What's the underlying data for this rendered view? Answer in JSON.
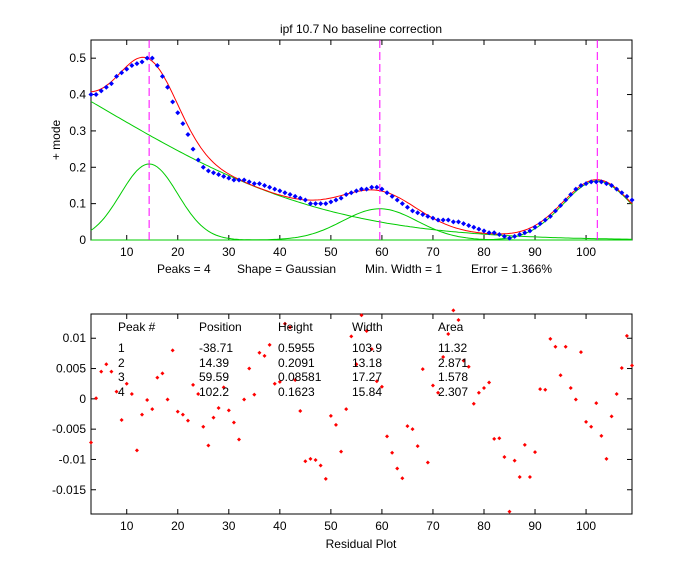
{
  "chart_data": [
    {
      "id": "fit",
      "type": "line",
      "title": "ipf 10.7    No baseline correction",
      "ylabel": "+ mode",
      "xlim": [
        3,
        109
      ],
      "ylim": [
        0,
        0.55
      ],
      "xticks": [
        10,
        20,
        30,
        40,
        50,
        60,
        70,
        80,
        90,
        100
      ],
      "yticks": [
        0,
        0.1,
        0.2,
        0.3,
        0.4,
        0.5
      ],
      "ytick_labels": [
        "0",
        "0.1",
        "0.2",
        "0.3",
        "0.4",
        "0.5"
      ],
      "status_line": {
        "peaks": "Peaks = 4",
        "shape": "Shape = Gaussian",
        "min_width": "Min. Width = 1",
        "error": "Error = 1.366%"
      },
      "peak_markers_x": [
        14.39,
        59.59,
        102.2
      ],
      "components": [
        {
          "name": "Peak 1",
          "position": -38.71,
          "height": 0.5955,
          "width": 103.9,
          "color": "#00cc00"
        },
        {
          "name": "Peak 2",
          "position": 14.39,
          "height": 0.2091,
          "width": 13.18,
          "color": "#00cc00"
        },
        {
          "name": "Peak 3",
          "position": 59.59,
          "height": 0.08581,
          "width": 17.27,
          "color": "#00cc00"
        },
        {
          "name": "Peak 4",
          "position": 102.2,
          "height": 0.1623,
          "width": 15.84,
          "color": "#00cc00"
        }
      ],
      "series": [
        {
          "name": "data",
          "color": "#0000ff",
          "x": [
            3,
            4,
            5,
            6,
            7,
            8,
            9,
            10,
            11,
            12,
            13,
            14,
            15,
            16,
            17,
            18,
            19,
            20,
            21,
            22,
            23,
            24,
            25,
            26,
            27,
            28,
            29,
            30,
            31,
            32,
            33,
            34,
            35,
            36,
            37,
            38,
            39,
            40,
            41,
            42,
            43,
            44,
            45,
            46,
            47,
            48,
            49,
            50,
            51,
            52,
            53,
            54,
            55,
            56,
            57,
            58,
            59,
            60,
            61,
            62,
            63,
            64,
            65,
            66,
            67,
            68,
            69,
            70,
            71,
            72,
            73,
            74,
            75,
            76,
            77,
            78,
            79,
            80,
            81,
            82,
            83,
            84,
            85,
            86,
            87,
            88,
            89,
            90,
            91,
            92,
            93,
            94,
            95,
            96,
            97,
            98,
            99,
            100,
            101,
            102,
            103,
            104,
            105,
            106,
            107,
            108,
            109
          ],
          "y": [
            0.4,
            0.4,
            0.41,
            0.42,
            0.43,
            0.45,
            0.46,
            0.47,
            0.48,
            0.485,
            0.49,
            0.5,
            0.5,
            0.48,
            0.45,
            0.42,
            0.38,
            0.35,
            0.32,
            0.29,
            0.25,
            0.22,
            0.2,
            0.19,
            0.185,
            0.18,
            0.175,
            0.17,
            0.165,
            0.165,
            0.165,
            0.16,
            0.155,
            0.155,
            0.15,
            0.145,
            0.14,
            0.135,
            0.13,
            0.125,
            0.12,
            0.115,
            0.11,
            0.1,
            0.1,
            0.1,
            0.1,
            0.105,
            0.11,
            0.115,
            0.125,
            0.13,
            0.135,
            0.14,
            0.14,
            0.145,
            0.145,
            0.14,
            0.13,
            0.12,
            0.11,
            0.1,
            0.09,
            0.08,
            0.075,
            0.07,
            0.065,
            0.06,
            0.055,
            0.055,
            0.055,
            0.05,
            0.05,
            0.045,
            0.04,
            0.035,
            0.03,
            0.025,
            0.02,
            0.02,
            0.015,
            0.01,
            0.005,
            0.01,
            0.015,
            0.02,
            0.025,
            0.035,
            0.045,
            0.055,
            0.065,
            0.08,
            0.095,
            0.11,
            0.125,
            0.14,
            0.15,
            0.155,
            0.16,
            0.16,
            0.16,
            0.155,
            0.15,
            0.14,
            0.13,
            0.12,
            0.11
          ]
        },
        {
          "name": "total fit",
          "color": "#ff0000"
        }
      ]
    },
    {
      "id": "residual",
      "type": "scatter",
      "xlabel": "Residual Plot",
      "xlim": [
        3,
        109
      ],
      "ylim": [
        -0.019,
        0.014
      ],
      "xticks": [
        10,
        20,
        30,
        40,
        50,
        60,
        70,
        80,
        90,
        100
      ],
      "yticks": [
        -0.015,
        -0.01,
        -0.005,
        0,
        0.005,
        0.01
      ],
      "ytick_labels": [
        "-0.015",
        "-0.01",
        "-0.005",
        "0",
        "0.005",
        "0.01"
      ],
      "series": [
        {
          "name": "residuals",
          "color": "#ff0000",
          "x": [
            3,
            4,
            5,
            6,
            7,
            8,
            9,
            10,
            11,
            12,
            13,
            14,
            15,
            16,
            17,
            18,
            19,
            20,
            21,
            22,
            23,
            24,
            25,
            26,
            27,
            28,
            29,
            30,
            31,
            32,
            33,
            34,
            35,
            36,
            37,
            38,
            39,
            40,
            41,
            42,
            43,
            44,
            45,
            46,
            47,
            48,
            49,
            50,
            51,
            52,
            53,
            54,
            55,
            56,
            57,
            58,
            59,
            60,
            61,
            62,
            63,
            64,
            65,
            66,
            67,
            68,
            69,
            70,
            71,
            72,
            73,
            74,
            75,
            76,
            77,
            78,
            79,
            80,
            81,
            82,
            83,
            84,
            85,
            86,
            87,
            88,
            89,
            90,
            91,
            92,
            93,
            94,
            95,
            96,
            97,
            98,
            99,
            100,
            101,
            102,
            103,
            104,
            105,
            106,
            107,
            108,
            109
          ],
          "y": [
            -0.0072,
            0.0001,
            0.0045,
            0.0057,
            0.0045,
            0.0012,
            -0.0035,
            0.0025,
            0.0008,
            -0.0085,
            -0.0026,
            -0.0002,
            -0.0017,
            0.0035,
            0.0042,
            -0.0001,
            0.008,
            -0.0021,
            -0.0026,
            -0.0036,
            0.0023,
            0.0008,
            -0.0046,
            -0.0077,
            -0.0031,
            -0.0015,
            0.0019,
            -0.0019,
            -0.0039,
            -0.0067,
            -0.0001,
            0.005,
            0.0007,
            0.0076,
            0.0071,
            0.0089,
            0.0025,
            0.0028,
            0.0124,
            0.0118,
            0.0031,
            -0.002,
            -0.0103,
            -0.0099,
            -0.0101,
            -0.011,
            -0.0132,
            -0.0028,
            -0.0043,
            -0.0087,
            -0.0017,
            0.0103,
            0.0057,
            0.0138,
            0.0112,
            0.0082,
            0.0029,
            0.002,
            -0.0062,
            -0.0089,
            -0.0115,
            -0.0131,
            -0.0045,
            -0.005,
            -0.0078,
            0.0049,
            -0.0105,
            0.0022,
            0.001,
            0.0069,
            0.0107,
            0.0146,
            0.013,
            0.0063,
            0.0053,
            -0.0008,
            0.001,
            0.0018,
            0.0027,
            -0.0066,
            -0.0065,
            -0.0096,
            -0.0186,
            -0.0102,
            -0.0129,
            -0.0076,
            -0.0129,
            -0.0088,
            0.0016,
            0.0015,
            0.0099,
            0.0086,
            0.0039,
            0.0086,
            0.0018,
            -0.0001,
            0.0077,
            -0.0038,
            -0.0046,
            -0.0007,
            -0.0061,
            -0.0099,
            -0.0029,
            0.0008,
            0.0051,
            0.0104,
            0.0055
          ]
        }
      ],
      "table": {
        "headers": [
          "Peak #",
          "Position",
          "Height",
          "Width",
          "Area"
        ],
        "rows": [
          [
            "1",
            "-38.71",
            "0.5955",
            "103.9",
            "11.32"
          ],
          [
            "2",
            "14.39",
            "0.2091",
            "13.18",
            "2.871"
          ],
          [
            "3",
            "59.59",
            "0.08581",
            "17.27",
            "1.578"
          ],
          [
            "4",
            "102.2",
            "0.1623",
            "15.84",
            "2.307"
          ]
        ]
      }
    }
  ]
}
